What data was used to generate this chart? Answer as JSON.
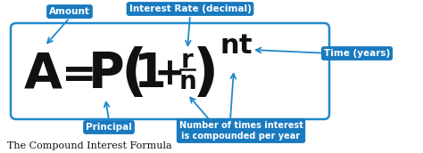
{
  "bg_color": "#ffffff",
  "formula_color": "#111111",
  "label_bg_color": "#1a7abf",
  "label_text_color": "#ffffff",
  "arrow_color": "#2288cc",
  "caption_text": "The Compound Interest Formula",
  "caption_color": "#111111",
  "formula_box_color": "#2288cc",
  "figsize": [
    4.74,
    1.72
  ],
  "dpi": 100,
  "labels": {
    "amount": "Amount",
    "rate": "Interest Rate (decimal)",
    "time": "Time (years)",
    "principal": "Principal",
    "n": "Number of times interest\nis compounded per year"
  }
}
